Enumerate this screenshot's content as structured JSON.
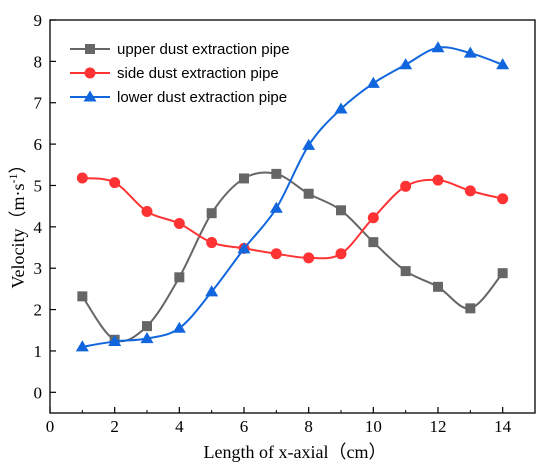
{
  "chart_data": {
    "type": "line",
    "xlabel": "Length of x-axial（cm）",
    "ylabel_main": "Velocity（m·s",
    "ylabel_sup": "-1",
    "ylabel_close": "）",
    "xlim": [
      0,
      15
    ],
    "ylim": [
      -0.5,
      9
    ],
    "xticks": [
      0,
      2,
      4,
      6,
      8,
      10,
      12,
      14
    ],
    "yticks": [
      0,
      1,
      2,
      3,
      4,
      5,
      6,
      7,
      8,
      9
    ],
    "grid": false,
    "legend_position": "top-left",
    "x": [
      1,
      2,
      3,
      4,
      5,
      6,
      7,
      8,
      9,
      10,
      11,
      12,
      13,
      14
    ],
    "series": [
      {
        "name": "upper dust extraction pipe",
        "color": "#666666",
        "marker": "square",
        "values": [
          2.32,
          1.27,
          1.6,
          2.78,
          4.33,
          5.17,
          5.28,
          4.8,
          4.4,
          3.63,
          2.93,
          2.55,
          2.03,
          2.88
        ]
      },
      {
        "name": "side dust extraction pipe",
        "color": "#ff3333",
        "marker": "circle",
        "values": [
          5.18,
          5.07,
          4.37,
          4.08,
          3.62,
          3.48,
          3.35,
          3.25,
          3.35,
          4.22,
          4.98,
          5.13,
          4.87,
          4.68
        ]
      },
      {
        "name": "lower dust extraction pipe",
        "color": "#1166dd",
        "marker": "triangle",
        "values": [
          1.1,
          1.23,
          1.3,
          1.55,
          2.43,
          3.47,
          4.45,
          5.97,
          6.85,
          7.47,
          7.92,
          8.33,
          8.2,
          7.92
        ]
      }
    ]
  }
}
